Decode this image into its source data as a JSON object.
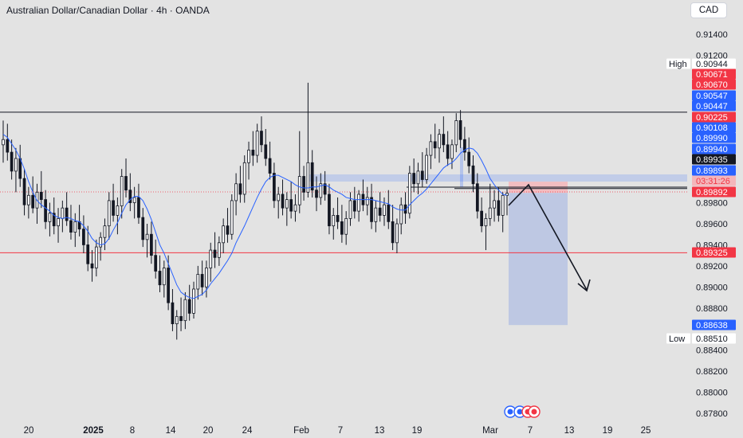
{
  "header": {
    "title": "Australian Dollar/Canadian Dollar · 4h · OANDA",
    "currency_button": "CAD"
  },
  "colors": {
    "background": "#e3e3e3",
    "candle": "#131722",
    "moving_average": "#2962ff",
    "red_level": "#f23645",
    "blue_label": "#2962ff",
    "stop_zone": "#f4b6bb",
    "target_zone": "#b7c3e3"
  },
  "chart_data": {
    "type": "candlestick",
    "symbol": "AUDCAD",
    "interval": "4h",
    "y_axis": {
      "ticks": [
        0.914,
        0.912,
        0.898,
        0.896,
        0.894,
        0.892,
        0.89,
        0.888,
        0.884,
        0.882,
        0.88,
        0.878
      ],
      "tick_labels": [
        "0.91400",
        "0.91200",
        "0.89800",
        "0.89600",
        "0.89400",
        "0.89200",
        "0.89000",
        "0.88800",
        "0.88400",
        "0.88200",
        "0.88000",
        "0.87800"
      ],
      "range": [
        0.8773,
        0.9163
      ]
    },
    "x_axis": {
      "tick_labels": [
        "20",
        "2025",
        "8",
        "14",
        "20",
        "24",
        "Feb",
        "7",
        "13",
        "19",
        "Mar",
        "7",
        "13",
        "19",
        "25"
      ],
      "bold_labels": [
        "2025"
      ]
    },
    "price_labels": [
      {
        "text": "High",
        "value": "0.90944",
        "style": "white"
      },
      {
        "text": "",
        "value": "0.90671",
        "style": "red"
      },
      {
        "text": "",
        "value": "0.90670",
        "style": "red"
      },
      {
        "text": "",
        "value": "0.90547",
        "style": "blue"
      },
      {
        "text": "",
        "value": "0.90447",
        "style": "blue"
      },
      {
        "text": "",
        "value": "0.90225",
        "style": "red"
      },
      {
        "text": "",
        "value": "0.90108",
        "style": "blue"
      },
      {
        "text": "",
        "value": "0.89990",
        "style": "blue"
      },
      {
        "text": "",
        "value": "0.89940",
        "style": "blue"
      },
      {
        "text": "",
        "value": "0.89935",
        "style": "black"
      },
      {
        "text": "",
        "value": "0.89893",
        "style": "blue"
      },
      {
        "text": "",
        "value": "03:31:26",
        "style": "red-countdown"
      },
      {
        "text": "",
        "value": "0.89892",
        "style": "red"
      },
      {
        "text": "",
        "value": "0.89325",
        "style": "red"
      },
      {
        "text": "",
        "value": "0.88638",
        "style": "blue"
      },
      {
        "text": "Low",
        "value": "0.88510",
        "style": "white"
      }
    ],
    "levels": {
      "resistance": 0.9066,
      "support": 0.89325,
      "current": 0.89892,
      "short_entry": 0.89893,
      "short_stop": 0.9,
      "short_target": 0.88638,
      "swing_high": 0.89935
    },
    "annotations": [
      {
        "type": "short-position",
        "entry": 0.89893,
        "stop": 0.9,
        "target": 0.88638
      },
      {
        "type": "projection-arrow",
        "path": [
          0.8978,
          0.8987,
          0.8894
        ]
      }
    ],
    "candles": [
      [
        0.9035,
        0.9058,
        0.9018,
        0.904
      ],
      [
        0.904,
        0.9055,
        0.902,
        0.9028
      ],
      [
        0.9028,
        0.904,
        0.9002,
        0.901
      ],
      [
        0.901,
        0.9032,
        0.899,
        0.9022
      ],
      [
        0.9022,
        0.9035,
        0.8995,
        0.9003
      ],
      [
        0.9003,
        0.9012,
        0.8968,
        0.8978
      ],
      [
        0.8978,
        0.8995,
        0.8965,
        0.8987
      ],
      [
        0.8987,
        0.9005,
        0.897,
        0.8975
      ],
      [
        0.8975,
        0.8998,
        0.896,
        0.899
      ],
      [
        0.899,
        0.901,
        0.8975,
        0.8983
      ],
      [
        0.8983,
        0.8992,
        0.8955,
        0.8962
      ],
      [
        0.8962,
        0.898,
        0.8948,
        0.897
      ],
      [
        0.897,
        0.8985,
        0.895,
        0.8958
      ],
      [
        0.8958,
        0.8975,
        0.8942,
        0.8965
      ],
      [
        0.8965,
        0.8982,
        0.8952,
        0.8975
      ],
      [
        0.8975,
        0.899,
        0.8958,
        0.8963
      ],
      [
        0.8963,
        0.8978,
        0.8945,
        0.8952
      ],
      [
        0.8952,
        0.897,
        0.8938,
        0.8962
      ],
      [
        0.8962,
        0.8978,
        0.8948,
        0.8955
      ],
      [
        0.8955,
        0.8968,
        0.8932,
        0.894
      ],
      [
        0.894,
        0.8958,
        0.8915,
        0.8922
      ],
      [
        0.8922,
        0.8935,
        0.8905,
        0.8918
      ],
      [
        0.8918,
        0.8945,
        0.891,
        0.8938
      ],
      [
        0.8938,
        0.8952,
        0.8925,
        0.8947
      ],
      [
        0.8947,
        0.8965,
        0.8935,
        0.8958
      ],
      [
        0.8958,
        0.899,
        0.8945,
        0.8982
      ],
      [
        0.8982,
        0.8998,
        0.8962,
        0.8968
      ],
      [
        0.8968,
        0.8985,
        0.895,
        0.8977
      ],
      [
        0.8977,
        0.9012,
        0.8965,
        0.9005
      ],
      [
        0.9005,
        0.9022,
        0.8985,
        0.8992
      ],
      [
        0.8992,
        0.9008,
        0.8972,
        0.898
      ],
      [
        0.898,
        0.8995,
        0.8965,
        0.8985
      ],
      [
        0.8985,
        0.8998,
        0.896,
        0.8966
      ],
      [
        0.8966,
        0.8975,
        0.8938,
        0.8945
      ],
      [
        0.8945,
        0.896,
        0.8928,
        0.895
      ],
      [
        0.895,
        0.8962,
        0.8922,
        0.893
      ],
      [
        0.893,
        0.8945,
        0.8908,
        0.8915
      ],
      [
        0.8915,
        0.893,
        0.8895,
        0.8902
      ],
      [
        0.8902,
        0.8925,
        0.889,
        0.8918
      ],
      [
        0.8918,
        0.893,
        0.8878,
        0.8885
      ],
      [
        0.8885,
        0.8898,
        0.8858,
        0.8865
      ],
      [
        0.8865,
        0.8878,
        0.885,
        0.8872
      ],
      [
        0.8872,
        0.889,
        0.8858,
        0.8868
      ],
      [
        0.8868,
        0.8895,
        0.886,
        0.8888
      ],
      [
        0.8888,
        0.8902,
        0.8868,
        0.8875
      ],
      [
        0.8875,
        0.8905,
        0.887,
        0.8898
      ],
      [
        0.8898,
        0.892,
        0.8888,
        0.8912
      ],
      [
        0.8912,
        0.8925,
        0.8892,
        0.89
      ],
      [
        0.89,
        0.8925,
        0.889,
        0.8918
      ],
      [
        0.8918,
        0.8942,
        0.8905,
        0.8935
      ],
      [
        0.8935,
        0.8952,
        0.8918,
        0.8928
      ],
      [
        0.8928,
        0.8948,
        0.892,
        0.8942
      ],
      [
        0.8942,
        0.8965,
        0.8932,
        0.8958
      ],
      [
        0.8958,
        0.8975,
        0.8942,
        0.895
      ],
      [
        0.895,
        0.8988,
        0.8945,
        0.8982
      ],
      [
        0.8982,
        0.9008,
        0.8968,
        0.8998
      ],
      [
        0.8998,
        0.9015,
        0.898,
        0.8988
      ],
      [
        0.8988,
        0.9025,
        0.898,
        0.9018
      ],
      [
        0.9018,
        0.9038,
        0.9002,
        0.903
      ],
      [
        0.903,
        0.9048,
        0.9015,
        0.9025
      ],
      [
        0.9025,
        0.9055,
        0.9018,
        0.9048
      ],
      [
        0.9048,
        0.9062,
        0.9028,
        0.9035
      ],
      [
        0.9035,
        0.905,
        0.9015,
        0.9022
      ],
      [
        0.9022,
        0.9038,
        0.9002,
        0.9008
      ],
      [
        0.9008,
        0.9018,
        0.8975,
        0.8982
      ],
      [
        0.8982,
        0.8995,
        0.8965,
        0.8988
      ],
      [
        0.8988,
        0.9002,
        0.8968,
        0.8975
      ],
      [
        0.8975,
        0.899,
        0.8958,
        0.8983
      ],
      [
        0.8983,
        0.9,
        0.8965,
        0.8972
      ],
      [
        0.8972,
        0.8988,
        0.8962,
        0.8978
      ],
      [
        0.8978,
        0.9048,
        0.897,
        0.9005
      ],
      [
        0.9005,
        0.9015,
        0.8982,
        0.899
      ],
      [
        0.899,
        0.9094,
        0.8985,
        0.9018
      ],
      [
        0.9018,
        0.903,
        0.8985,
        0.8992
      ],
      [
        0.8992,
        0.9005,
        0.8972,
        0.8985
      ],
      [
        0.8985,
        0.9008,
        0.8978,
        0.8998
      ],
      [
        0.8998,
        0.901,
        0.8982,
        0.8988
      ],
      [
        0.8988,
        0.8998,
        0.895,
        0.8958
      ],
      [
        0.8958,
        0.8975,
        0.8945,
        0.8968
      ],
      [
        0.8968,
        0.8985,
        0.8955,
        0.8962
      ],
      [
        0.8962,
        0.8978,
        0.8942,
        0.895
      ],
      [
        0.895,
        0.8972,
        0.894,
        0.8965
      ],
      [
        0.8965,
        0.899,
        0.8958,
        0.8982
      ],
      [
        0.8982,
        0.8995,
        0.8965,
        0.8972
      ],
      [
        0.8972,
        0.8992,
        0.8962,
        0.8988
      ],
      [
        0.8988,
        0.9002,
        0.8972,
        0.8978
      ],
      [
        0.8978,
        0.8995,
        0.8968,
        0.8985
      ],
      [
        0.8985,
        0.8998,
        0.8955,
        0.8962
      ],
      [
        0.8962,
        0.8982,
        0.8952,
        0.8975
      ],
      [
        0.8975,
        0.899,
        0.8962,
        0.8968
      ],
      [
        0.8968,
        0.8985,
        0.8958,
        0.8978
      ],
      [
        0.8978,
        0.8992,
        0.8955,
        0.8962
      ],
      [
        0.8962,
        0.8978,
        0.8935,
        0.8942
      ],
      [
        0.8942,
        0.8965,
        0.8932,
        0.896
      ],
      [
        0.896,
        0.8985,
        0.895,
        0.8978
      ],
      [
        0.8978,
        0.899,
        0.896,
        0.897
      ],
      [
        0.897,
        0.9015,
        0.8965,
        0.9008
      ],
      [
        0.9008,
        0.9022,
        0.899,
        0.8998
      ],
      [
        0.8998,
        0.9018,
        0.8988,
        0.901
      ],
      [
        0.901,
        0.9028,
        0.8995,
        0.9002
      ],
      [
        0.9002,
        0.9032,
        0.8998,
        0.9025
      ],
      [
        0.9025,
        0.9045,
        0.9012,
        0.9038
      ],
      [
        0.9038,
        0.9055,
        0.9022,
        0.9032
      ],
      [
        0.9032,
        0.905,
        0.9018,
        0.9045
      ],
      [
        0.9045,
        0.9062,
        0.9028,
        0.9035
      ],
      [
        0.9035,
        0.9048,
        0.9015,
        0.9022
      ],
      [
        0.9022,
        0.904,
        0.9012,
        0.9035
      ],
      [
        0.9035,
        0.9065,
        0.9028,
        0.9058
      ],
      [
        0.9058,
        0.9068,
        0.9032,
        0.904
      ],
      [
        0.904,
        0.9052,
        0.902,
        0.9028
      ],
      [
        0.9028,
        0.9042,
        0.9008,
        0.9015
      ],
      [
        0.9015,
        0.9025,
        0.899,
        0.8998
      ],
      [
        0.8998,
        0.9008,
        0.8965,
        0.8972
      ],
      [
        0.8972,
        0.8985,
        0.8952,
        0.8958
      ],
      [
        0.8958,
        0.897,
        0.8935,
        0.8965
      ],
      [
        0.8965,
        0.8998,
        0.8958,
        0.8975
      ],
      [
        0.8975,
        0.8992,
        0.8962,
        0.8982
      ],
      [
        0.8982,
        0.8995,
        0.8962,
        0.8968
      ],
      [
        0.8968,
        0.899,
        0.8952,
        0.8987
      ],
      [
        0.8987,
        0.8993,
        0.8968,
        0.8989
      ]
    ],
    "moving_average": [
      0.9045,
      0.9042,
      0.9036,
      0.903,
      0.9022,
      0.9012,
      0.9,
      0.899,
      0.8982,
      0.8978,
      0.8975,
      0.8972,
      0.8968,
      0.8966,
      0.8965,
      0.8966,
      0.8965,
      0.8963,
      0.8962,
      0.8958,
      0.8953,
      0.8946,
      0.8942,
      0.894,
      0.8941,
      0.8946,
      0.8954,
      0.8961,
      0.897,
      0.8978,
      0.8983,
      0.8986,
      0.8986,
      0.8982,
      0.8974,
      0.8964,
      0.8952,
      0.894,
      0.8932,
      0.8922,
      0.8912,
      0.8902,
      0.8895,
      0.8892,
      0.889,
      0.8889,
      0.8891,
      0.8893,
      0.8897,
      0.8903,
      0.8908,
      0.8913,
      0.8919,
      0.8925,
      0.8932,
      0.8942,
      0.895,
      0.8958,
      0.8967,
      0.8976,
      0.8985,
      0.8993,
      0.9,
      0.9004,
      0.9006,
      0.9006,
      0.9004,
      0.9002,
      0.9,
      0.8997,
      0.8995,
      0.8994,
      0.8994,
      0.8995,
      0.8995,
      0.8996,
      0.8997,
      0.8995,
      0.8992,
      0.899,
      0.8988,
      0.8985,
      0.8984,
      0.8983,
      0.8983,
      0.8983,
      0.8983,
      0.8983,
      0.8982,
      0.8981,
      0.898,
      0.8979,
      0.8976,
      0.8974,
      0.8973,
      0.8973,
      0.8978,
      0.8982,
      0.8986,
      0.8989,
      0.8993,
      0.8998,
      0.9003,
      0.9008,
      0.9013,
      0.9016,
      0.9018,
      0.9022,
      0.9027,
      0.903,
      0.9032,
      0.9031,
      0.9027,
      0.902,
      0.9012,
      0.9003,
      0.8997,
      0.8992,
      0.8988,
      0.8987
    ]
  }
}
